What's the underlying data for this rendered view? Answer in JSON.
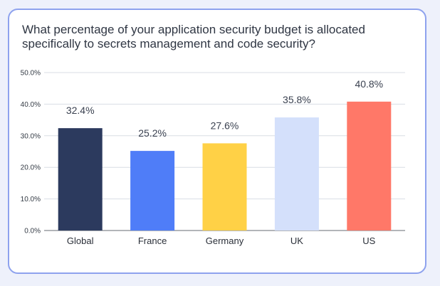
{
  "chart_data": {
    "type": "bar",
    "title": "What percentage of your application security budget is allocated specifically to secrets management and code security?",
    "categories": [
      "Global",
      "France",
      "Germany",
      "UK",
      "US"
    ],
    "values": [
      32.4,
      25.2,
      27.6,
      35.8,
      40.8
    ],
    "data_labels": [
      "32.4%",
      "25.2%",
      "27.6%",
      "35.8%",
      "40.8%"
    ],
    "colors": [
      "#2c3a5e",
      "#4f7df8",
      "#ffd146",
      "#d4e0fb",
      "#ff7868"
    ],
    "ylim": [
      0,
      50
    ],
    "yticks": [
      {
        "value": 0,
        "label": "0.0%"
      },
      {
        "value": 10,
        "label": "10.0%"
      },
      {
        "value": 20,
        "label": "20.0%"
      },
      {
        "value": 30,
        "label": "30.0%"
      },
      {
        "value": 40,
        "label": "40.0%"
      },
      {
        "value": 50,
        "label": "50.0%"
      }
    ],
    "grid": true,
    "xlabel": "",
    "ylabel": "",
    "legend": "none"
  }
}
